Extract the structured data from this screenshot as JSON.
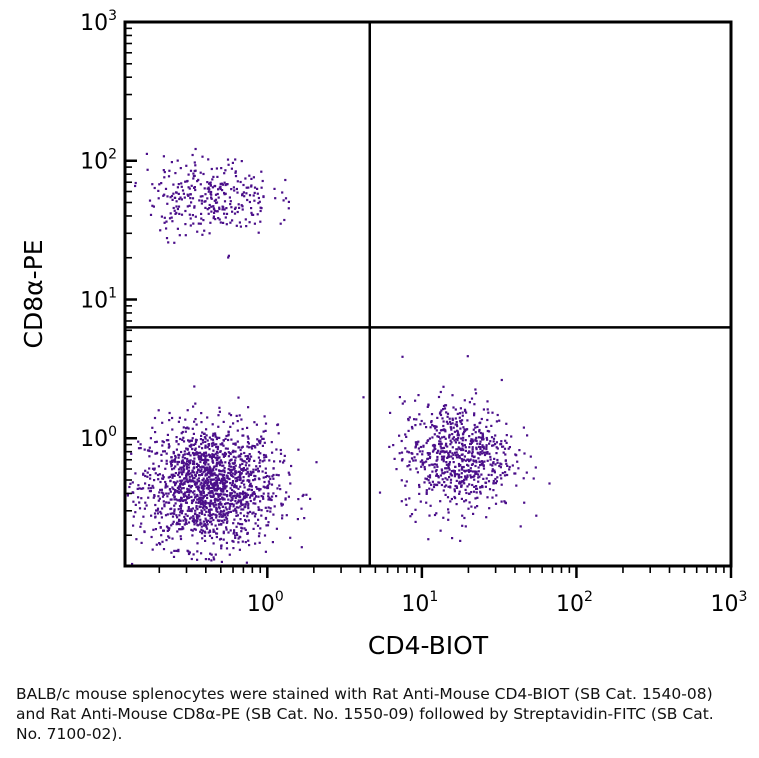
{
  "chart_data": {
    "type": "scatter",
    "xlabel": "CD4-BIOT",
    "ylabel": "CD8α-PE",
    "x_scale": "log",
    "y_scale": "log",
    "xlim": [
      0.12,
      1000
    ],
    "ylim": [
      0.12,
      1000
    ],
    "x_ticks": [
      {
        "base": "10",
        "exp": "0",
        "value": 1
      },
      {
        "base": "10",
        "exp": "1",
        "value": 10
      },
      {
        "base": "10",
        "exp": "2",
        "value": 100
      },
      {
        "base": "10",
        "exp": "3",
        "value": 1000
      }
    ],
    "y_ticks": [
      {
        "base": "10",
        "exp": "0",
        "value": 1
      },
      {
        "base": "10",
        "exp": "1",
        "value": 10
      },
      {
        "base": "10",
        "exp": "2",
        "value": 100
      },
      {
        "base": "10",
        "exp": "3",
        "value": 1000
      }
    ],
    "gate_x": 4.6,
    "gate_y": 6.3,
    "point_color": "#4b0f8a",
    "grid": false,
    "populations": [
      {
        "center_x": 0.42,
        "center_y": 0.45,
        "spread_x": 0.22,
        "spread_y": 0.22,
        "count": 1700
      },
      {
        "center_x": 17,
        "center_y": 0.75,
        "spread_x": 0.18,
        "spread_y": 0.2,
        "count": 750
      },
      {
        "center_x": 0.42,
        "center_y": 55,
        "spread_x": 0.2,
        "spread_y": 0.14,
        "count": 320
      }
    ],
    "scatter_notes": "flow cytometry dot plot; double-negative, CD4+ and CD8+ populations"
  },
  "caption": "BALB/c mouse splenocytes were stained with Rat Anti-Mouse CD4-BIOT (SB Cat. 1540-08) and Rat Anti-Mouse CD8α-PE (SB Cat. No. 1550-09) followed by Streptavidin-FITC (SB Cat. No. 7100-02)."
}
